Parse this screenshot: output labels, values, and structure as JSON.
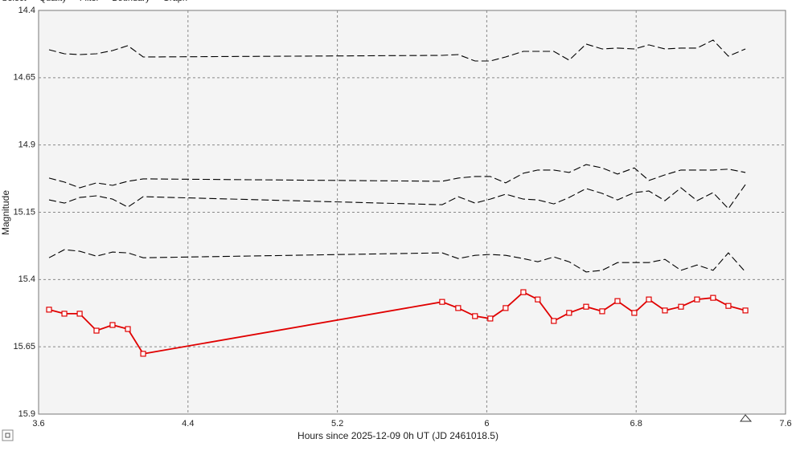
{
  "tabs": [
    "Select",
    "Quality",
    "Filter",
    "Boundary",
    "Graph"
  ],
  "chart_data": {
    "type": "line",
    "xlabel": "Hours since 2025-12-09 0h UT (JD 2461018.5)",
    "ylabel": "Magnitude",
    "xlim": [
      3.6,
      7.6
    ],
    "xticks": [
      3.6,
      4.4,
      5.2,
      6,
      6.8,
      7.6
    ],
    "ylim": [
      14.4,
      15.9
    ],
    "yticks": [
      14.4,
      14.65,
      14.9,
      15.15,
      15.4,
      15.65,
      15.9
    ],
    "y_inverted": true,
    "grid": true,
    "x": [
      3.656,
      3.738,
      3.82,
      3.91,
      3.996,
      4.078,
      4.16,
      5.761,
      5.847,
      5.937,
      6.019,
      6.101,
      6.196,
      6.273,
      6.359,
      6.441,
      6.532,
      6.618,
      6.7,
      6.79,
      6.868,
      6.954,
      7.04,
      7.126,
      7.212,
      7.294,
      7.385
    ],
    "series": [
      {
        "color": "#000000",
        "dashed": true,
        "values": [
          14.546,
          14.561,
          14.564,
          14.561,
          14.549,
          14.531,
          14.573,
          14.567,
          14.564,
          14.588,
          14.588,
          14.573,
          14.552,
          14.552,
          14.552,
          14.585,
          14.525,
          14.543,
          14.54,
          14.543,
          14.528,
          14.543,
          14.54,
          14.54,
          14.51,
          14.57,
          14.543
        ]
      },
      {
        "color": "#000000",
        "dashed": true,
        "values": [
          15.023,
          15.038,
          15.059,
          15.041,
          15.05,
          15.035,
          15.026,
          15.035,
          15.023,
          15.017,
          15.017,
          15.041,
          15.005,
          14.993,
          14.993,
          15.002,
          14.973,
          14.985,
          15.008,
          14.985,
          15.032,
          15.011,
          14.993,
          14.993,
          14.993,
          14.99,
          15.002
        ]
      },
      {
        "color": "#000000",
        "dashed": true,
        "values": [
          15.104,
          15.116,
          15.095,
          15.089,
          15.101,
          15.131,
          15.092,
          15.122,
          15.092,
          15.116,
          15.101,
          15.083,
          15.101,
          15.104,
          15.119,
          15.095,
          15.062,
          15.08,
          15.104,
          15.077,
          15.071,
          15.107,
          15.059,
          15.107,
          15.077,
          15.137,
          15.047
        ]
      },
      {
        "color": "#000000",
        "dashed": true,
        "values": [
          15.319,
          15.289,
          15.295,
          15.313,
          15.298,
          15.301,
          15.319,
          15.301,
          15.322,
          15.31,
          15.307,
          15.31,
          15.322,
          15.334,
          15.316,
          15.334,
          15.372,
          15.366,
          15.337,
          15.337,
          15.337,
          15.325,
          15.366,
          15.346,
          15.366,
          15.301,
          15.372
        ]
      },
      {
        "color": "#e00000",
        "marker": "square",
        "values": [
          15.512,
          15.527,
          15.527,
          15.59,
          15.569,
          15.584,
          15.676,
          15.483,
          15.506,
          15.536,
          15.545,
          15.506,
          15.447,
          15.474,
          15.554,
          15.524,
          15.501,
          15.518,
          15.48,
          15.524,
          15.474,
          15.515,
          15.501,
          15.474,
          15.468,
          15.498,
          15.515
        ]
      }
    ]
  }
}
